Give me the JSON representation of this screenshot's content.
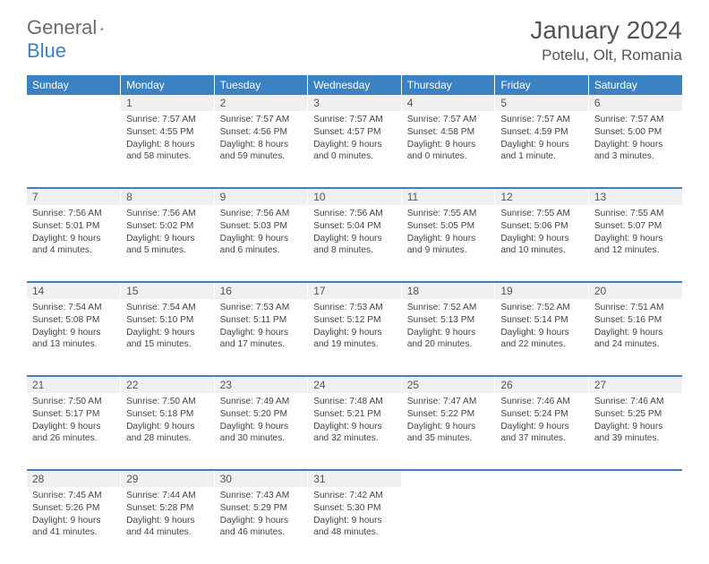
{
  "logo": {
    "general": "General",
    "blue": "Blue"
  },
  "title": "January 2024",
  "location": "Potelu, Olt, Romania",
  "colors": {
    "header_bg": "#3b82c4",
    "daynum_bg": "#eef0f2",
    "text": "#555555",
    "logo_gray": "#6b6b6b",
    "logo_blue": "#3b82c4"
  },
  "weekdays": [
    "Sunday",
    "Monday",
    "Tuesday",
    "Wednesday",
    "Thursday",
    "Friday",
    "Saturday"
  ],
  "weeks": [
    {
      "nums": [
        "",
        "1",
        "2",
        "3",
        "4",
        "5",
        "6"
      ],
      "cells": [
        {
          "sunrise": "",
          "sunset": "",
          "day1": "",
          "day2": ""
        },
        {
          "sunrise": "Sunrise: 7:57 AM",
          "sunset": "Sunset: 4:55 PM",
          "day1": "Daylight: 8 hours",
          "day2": "and 58 minutes."
        },
        {
          "sunrise": "Sunrise: 7:57 AM",
          "sunset": "Sunset: 4:56 PM",
          "day1": "Daylight: 8 hours",
          "day2": "and 59 minutes."
        },
        {
          "sunrise": "Sunrise: 7:57 AM",
          "sunset": "Sunset: 4:57 PM",
          "day1": "Daylight: 9 hours",
          "day2": "and 0 minutes."
        },
        {
          "sunrise": "Sunrise: 7:57 AM",
          "sunset": "Sunset: 4:58 PM",
          "day1": "Daylight: 9 hours",
          "day2": "and 0 minutes."
        },
        {
          "sunrise": "Sunrise: 7:57 AM",
          "sunset": "Sunset: 4:59 PM",
          "day1": "Daylight: 9 hours",
          "day2": "and 1 minute."
        },
        {
          "sunrise": "Sunrise: 7:57 AM",
          "sunset": "Sunset: 5:00 PM",
          "day1": "Daylight: 9 hours",
          "day2": "and 3 minutes."
        }
      ]
    },
    {
      "nums": [
        "7",
        "8",
        "9",
        "10",
        "11",
        "12",
        "13"
      ],
      "cells": [
        {
          "sunrise": "Sunrise: 7:56 AM",
          "sunset": "Sunset: 5:01 PM",
          "day1": "Daylight: 9 hours",
          "day2": "and 4 minutes."
        },
        {
          "sunrise": "Sunrise: 7:56 AM",
          "sunset": "Sunset: 5:02 PM",
          "day1": "Daylight: 9 hours",
          "day2": "and 5 minutes."
        },
        {
          "sunrise": "Sunrise: 7:56 AM",
          "sunset": "Sunset: 5:03 PM",
          "day1": "Daylight: 9 hours",
          "day2": "and 6 minutes."
        },
        {
          "sunrise": "Sunrise: 7:56 AM",
          "sunset": "Sunset: 5:04 PM",
          "day1": "Daylight: 9 hours",
          "day2": "and 8 minutes."
        },
        {
          "sunrise": "Sunrise: 7:55 AM",
          "sunset": "Sunset: 5:05 PM",
          "day1": "Daylight: 9 hours",
          "day2": "and 9 minutes."
        },
        {
          "sunrise": "Sunrise: 7:55 AM",
          "sunset": "Sunset: 5:06 PM",
          "day1": "Daylight: 9 hours",
          "day2": "and 10 minutes."
        },
        {
          "sunrise": "Sunrise: 7:55 AM",
          "sunset": "Sunset: 5:07 PM",
          "day1": "Daylight: 9 hours",
          "day2": "and 12 minutes."
        }
      ]
    },
    {
      "nums": [
        "14",
        "15",
        "16",
        "17",
        "18",
        "19",
        "20"
      ],
      "cells": [
        {
          "sunrise": "Sunrise: 7:54 AM",
          "sunset": "Sunset: 5:08 PM",
          "day1": "Daylight: 9 hours",
          "day2": "and 13 minutes."
        },
        {
          "sunrise": "Sunrise: 7:54 AM",
          "sunset": "Sunset: 5:10 PM",
          "day1": "Daylight: 9 hours",
          "day2": "and 15 minutes."
        },
        {
          "sunrise": "Sunrise: 7:53 AM",
          "sunset": "Sunset: 5:11 PM",
          "day1": "Daylight: 9 hours",
          "day2": "and 17 minutes."
        },
        {
          "sunrise": "Sunrise: 7:53 AM",
          "sunset": "Sunset: 5:12 PM",
          "day1": "Daylight: 9 hours",
          "day2": "and 19 minutes."
        },
        {
          "sunrise": "Sunrise: 7:52 AM",
          "sunset": "Sunset: 5:13 PM",
          "day1": "Daylight: 9 hours",
          "day2": "and 20 minutes."
        },
        {
          "sunrise": "Sunrise: 7:52 AM",
          "sunset": "Sunset: 5:14 PM",
          "day1": "Daylight: 9 hours",
          "day2": "and 22 minutes."
        },
        {
          "sunrise": "Sunrise: 7:51 AM",
          "sunset": "Sunset: 5:16 PM",
          "day1": "Daylight: 9 hours",
          "day2": "and 24 minutes."
        }
      ]
    },
    {
      "nums": [
        "21",
        "22",
        "23",
        "24",
        "25",
        "26",
        "27"
      ],
      "cells": [
        {
          "sunrise": "Sunrise: 7:50 AM",
          "sunset": "Sunset: 5:17 PM",
          "day1": "Daylight: 9 hours",
          "day2": "and 26 minutes."
        },
        {
          "sunrise": "Sunrise: 7:50 AM",
          "sunset": "Sunset: 5:18 PM",
          "day1": "Daylight: 9 hours",
          "day2": "and 28 minutes."
        },
        {
          "sunrise": "Sunrise: 7:49 AM",
          "sunset": "Sunset: 5:20 PM",
          "day1": "Daylight: 9 hours",
          "day2": "and 30 minutes."
        },
        {
          "sunrise": "Sunrise: 7:48 AM",
          "sunset": "Sunset: 5:21 PM",
          "day1": "Daylight: 9 hours",
          "day2": "and 32 minutes."
        },
        {
          "sunrise": "Sunrise: 7:47 AM",
          "sunset": "Sunset: 5:22 PM",
          "day1": "Daylight: 9 hours",
          "day2": "and 35 minutes."
        },
        {
          "sunrise": "Sunrise: 7:46 AM",
          "sunset": "Sunset: 5:24 PM",
          "day1": "Daylight: 9 hours",
          "day2": "and 37 minutes."
        },
        {
          "sunrise": "Sunrise: 7:46 AM",
          "sunset": "Sunset: 5:25 PM",
          "day1": "Daylight: 9 hours",
          "day2": "and 39 minutes."
        }
      ]
    },
    {
      "nums": [
        "28",
        "29",
        "30",
        "31",
        "",
        "",
        ""
      ],
      "cells": [
        {
          "sunrise": "Sunrise: 7:45 AM",
          "sunset": "Sunset: 5:26 PM",
          "day1": "Daylight: 9 hours",
          "day2": "and 41 minutes."
        },
        {
          "sunrise": "Sunrise: 7:44 AM",
          "sunset": "Sunset: 5:28 PM",
          "day1": "Daylight: 9 hours",
          "day2": "and 44 minutes."
        },
        {
          "sunrise": "Sunrise: 7:43 AM",
          "sunset": "Sunset: 5:29 PM",
          "day1": "Daylight: 9 hours",
          "day2": "and 46 minutes."
        },
        {
          "sunrise": "Sunrise: 7:42 AM",
          "sunset": "Sunset: 5:30 PM",
          "day1": "Daylight: 9 hours",
          "day2": "and 48 minutes."
        },
        {
          "sunrise": "",
          "sunset": "",
          "day1": "",
          "day2": ""
        },
        {
          "sunrise": "",
          "sunset": "",
          "day1": "",
          "day2": ""
        },
        {
          "sunrise": "",
          "sunset": "",
          "day1": "",
          "day2": ""
        }
      ]
    }
  ]
}
